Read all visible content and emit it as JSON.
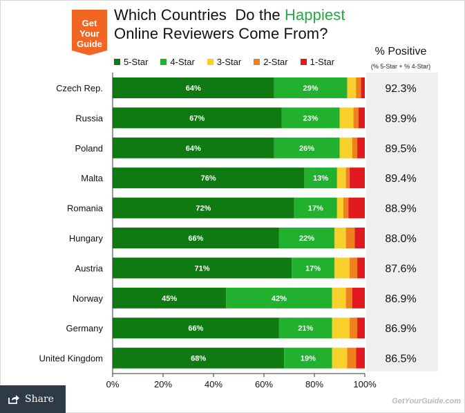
{
  "logo": {
    "line1": "Get",
    "line2": "Your",
    "line3": "Guide",
    "color": "#f26522"
  },
  "title": {
    "line1_prefix": "Which Countries  Do the ",
    "line1_highlight": "Happiest",
    "line2": "Online Reviewers Come From?"
  },
  "percent_positive": {
    "header": "% Positive",
    "subheader": "(% 5-Star + % 4-Star)"
  },
  "share": {
    "label": "Share",
    "icon": "share-arrow-icon"
  },
  "watermark": "GetYourGuide.com",
  "chart_data": {
    "type": "bar",
    "orientation": "horizontal",
    "stacked": true,
    "categories": [
      "Czech Rep.",
      "Russia",
      "Poland",
      "Malta",
      "Romania",
      "Hungary",
      "Austria",
      "Norway",
      "Germany",
      "United Kingdom"
    ],
    "series": [
      {
        "name": "5-Star",
        "color": "#0f7a12",
        "values": [
          64,
          67,
          64,
          76,
          72,
          66,
          71,
          45,
          66,
          68
        ],
        "labels": [
          "64%",
          "67%",
          "64%",
          "76%",
          "72%",
          "66%",
          "71%",
          "45%",
          "66%",
          "68%"
        ]
      },
      {
        "name": "4-Star",
        "color": "#22b12e",
        "values": [
          29,
          23,
          26,
          13,
          17,
          22,
          17,
          42,
          21,
          19
        ],
        "labels": [
          "29%",
          "23%",
          "26%",
          "13%",
          "17%",
          "22%",
          "17%",
          "42%",
          "21%",
          "19%"
        ]
      },
      {
        "name": "3-Star",
        "color": "#f7d02c",
        "values": [
          3.5,
          5.5,
          5,
          3.5,
          2.5,
          4.5,
          6,
          5.5,
          7,
          6
        ]
      },
      {
        "name": "2-Star",
        "color": "#f07f1d",
        "values": [
          2,
          2,
          2,
          1.5,
          2,
          3.5,
          3,
          2.5,
          3,
          3.5
        ]
      },
      {
        "name": "1-Star",
        "color": "#e0191e",
        "values": [
          1.5,
          2.5,
          3,
          6,
          6.5,
          4,
          3,
          5,
          3,
          3.5
        ]
      }
    ],
    "percent_positive": [
      "92.3%",
      "89.9%",
      "89.5%",
      "89.4%",
      "88.9%",
      "88.0%",
      "87.6%",
      "86.9%",
      "86.9%",
      "86.5%"
    ],
    "xlim": [
      0,
      100
    ],
    "xticks": [
      "0%",
      "20%",
      "40%",
      "60%",
      "80%",
      "100%"
    ],
    "legend_position": "top",
    "grid": false
  }
}
